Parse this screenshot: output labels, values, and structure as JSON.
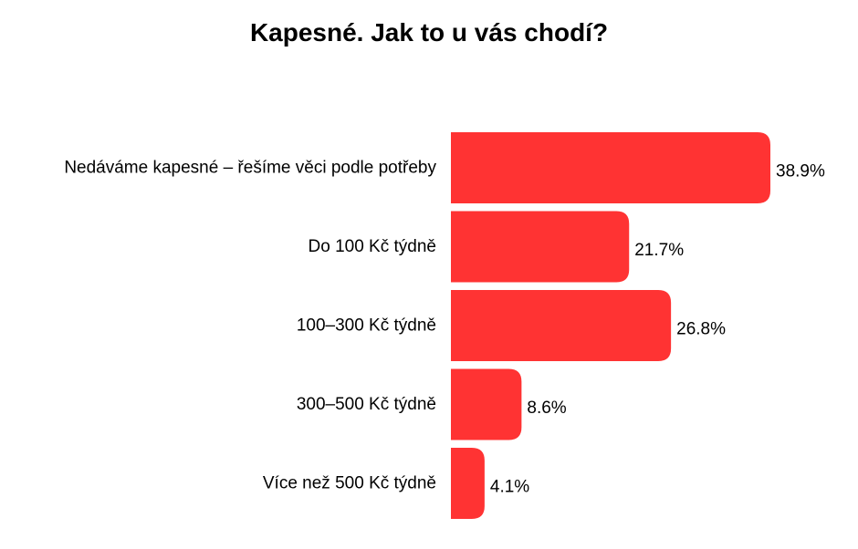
{
  "chart_data": {
    "type": "bar",
    "orientation": "horizontal",
    "title": "Kapesné. Jak to u vás chodí?",
    "categories": [
      "Nedáváme kapesné – řešíme věci podle potřeby",
      "Do 100 Kč týdně",
      "100–300 Kč týdně",
      "300–500 Kč týdně",
      "Více než 500 Kč týdně"
    ],
    "values": [
      38.9,
      21.7,
      26.8,
      8.6,
      4.1
    ],
    "value_labels": [
      "38.9%",
      "21.7%",
      "26.8%",
      "8.6%",
      "4.1%"
    ],
    "unit": "%",
    "xlim": [
      0,
      38.9
    ],
    "grid": false,
    "legend": "none",
    "bar_color": "#ff3333"
  }
}
